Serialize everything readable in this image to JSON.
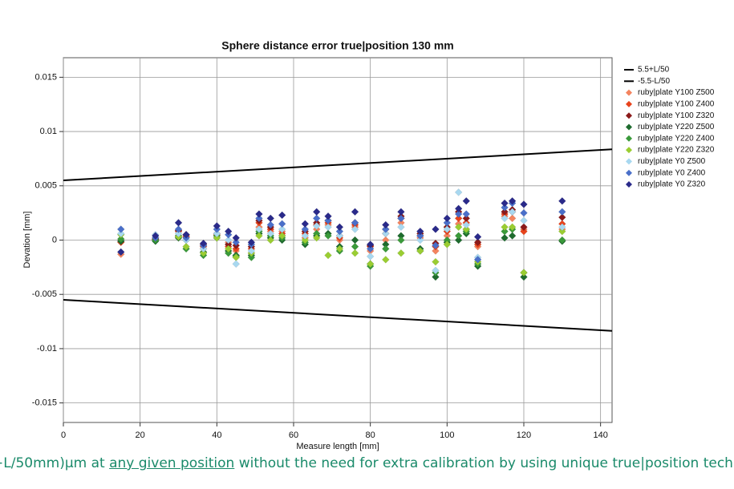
{
  "chart_data": {
    "type": "scatter",
    "title": "Sphere distance error true|position 130 mm",
    "xlabel": "Measure length [mm]",
    "ylabel": "Devation [mm]",
    "xlim": [
      0,
      143
    ],
    "ylim": [
      -0.0168,
      0.0168
    ],
    "xticks": [
      0,
      20,
      40,
      60,
      80,
      100,
      120,
      140
    ],
    "yticks": [
      0.015,
      0.01,
      0.005,
      0,
      -0.005,
      -0.01,
      -0.015
    ],
    "grid": true,
    "legend": "right",
    "x": [
      15,
      24,
      30,
      32,
      36.5,
      40,
      43,
      45,
      49,
      51,
      54,
      57,
      63,
      66,
      69,
      72,
      76,
      80,
      84,
      88,
      93,
      97,
      100,
      103,
      105,
      108,
      115,
      117,
      120,
      130
    ],
    "lines": [
      {
        "name": "5.5+L/50",
        "color": "#000000",
        "x": [
          0,
          143
        ],
        "values": [
          0.0055,
          0.00836
        ]
      },
      {
        "name": "-5.5-L/50",
        "color": "#000000",
        "x": [
          0,
          143
        ],
        "values": [
          -0.0055,
          -0.00836
        ]
      }
    ],
    "series": [
      {
        "name": "ruby|plate Y100 Z500",
        "color": "#f4845f",
        "values": [
          -0.0013,
          0.0001,
          0.0004,
          0.0004,
          -0.0008,
          0.0005,
          -0.0002,
          -0.001,
          -0.0012,
          0.0012,
          0.0008,
          0.0008,
          0.0002,
          0.001,
          0.0014,
          0,
          0.0012,
          -0.001,
          0,
          0.0016,
          0.0002,
          -0.001,
          0.0004,
          0.0015,
          0.001,
          -0.0006,
          0.0022,
          0.002,
          0.001,
          0.001
        ]
      },
      {
        "name": "ruby|plate Y100 Z400",
        "color": "#e8431c",
        "values": [
          -0.0002,
          0,
          0.0008,
          0.0003,
          -0.0006,
          0.0004,
          -0.0006,
          -0.0008,
          -0.0008,
          0.0016,
          0.001,
          0.0006,
          0.0006,
          0.0014,
          0.0016,
          0.0002,
          0.0014,
          -0.0006,
          0.0006,
          0.002,
          0.0004,
          -0.0006,
          0.0008,
          0.002,
          0.0016,
          -0.0004,
          0.0024,
          0.0026,
          0.0008,
          0.0015
        ]
      },
      {
        "name": "ruby|plate Y100 Z320",
        "color": "#8b1a1a",
        "values": [
          -0.0001,
          0.0001,
          0.0009,
          0.0005,
          -0.0004,
          0.0006,
          -0.0004,
          -0.0005,
          -0.0006,
          0.0018,
          0.0012,
          0.0004,
          0.0008,
          0.0016,
          0.0018,
          0.0004,
          0.0016,
          -0.0005,
          0.001,
          0.0022,
          0.0006,
          -0.0003,
          0.0012,
          0.0026,
          0.002,
          -0.0002,
          0.0026,
          0.0028,
          0.0012,
          0.0021
        ]
      },
      {
        "name": "ruby|plate Y220 Z500",
        "color": "#1e6b2e",
        "values": [
          -0.0001,
          -0.0001,
          0.0002,
          0,
          -0.0011,
          0.0002,
          -0.001,
          -0.0014,
          -0.0014,
          0.0006,
          0.0002,
          0,
          -0.0004,
          0.0004,
          0.0006,
          -0.0006,
          0,
          -0.0022,
          -0.0004,
          0.0004,
          -0.0008,
          -0.0034,
          -0.0002,
          0,
          0.0006,
          -0.0024,
          0.0002,
          0.0004,
          -0.0034,
          -0.0001
        ]
      },
      {
        "name": "ruby|plate Y220 Z400",
        "color": "#3a9a3a",
        "values": [
          0.0001,
          0,
          0.0004,
          -0.0008,
          -0.0014,
          0.0004,
          -0.0012,
          -0.0015,
          -0.0016,
          0.0008,
          0.0004,
          0.0002,
          -0.0002,
          0.0006,
          0.0004,
          -0.001,
          -0.0006,
          -0.0024,
          -0.0008,
          0,
          -0.001,
          -0.003,
          0,
          0.0004,
          0.0008,
          -0.0022,
          0.0008,
          0.001,
          -0.003,
          0
        ]
      },
      {
        "name": "ruby|plate Y220 Z320",
        "color": "#9acd32",
        "values": [
          0.0005,
          0.0002,
          0.0003,
          -0.0006,
          -0.0012,
          0.0002,
          -0.0008,
          -0.0016,
          -0.0012,
          0.0004,
          0,
          0.0004,
          0,
          0.0002,
          -0.0014,
          -0.0008,
          -0.0012,
          -0.0022,
          -0.0018,
          -0.0012,
          -0.001,
          -0.002,
          -0.0004,
          0.0012,
          0.001,
          -0.002,
          0.0012,
          0.0012,
          -0.003,
          0.0008
        ]
      },
      {
        "name": "ruby|plate Y0 Z500",
        "color": "#a8d8f0",
        "values": [
          0.0006,
          0.0005,
          0.0006,
          0,
          -0.0008,
          0.0006,
          0,
          -0.0022,
          -0.001,
          0.001,
          0.0006,
          0.001,
          0.0004,
          0.0013,
          0.0012,
          0.0004,
          0.001,
          -0.0015,
          0.0006,
          0.0012,
          0,
          -0.0028,
          0.001,
          0.0044,
          0.0014,
          -0.0016,
          0.002,
          0.0026,
          0.0018,
          0.0012
        ]
      },
      {
        "name": "ruby|plate Y0 Z400",
        "color": "#4a6fc9",
        "values": [
          0.001,
          0.0002,
          0.001,
          0.0002,
          -0.0005,
          0.001,
          0.0005,
          -0.0002,
          -0.0004,
          0.002,
          0.0014,
          0.0015,
          0.001,
          0.002,
          0.0018,
          0.0008,
          0.0016,
          -0.0008,
          0.001,
          0.002,
          0.0004,
          -0.0005,
          0.0016,
          0.0024,
          0.0024,
          -0.0018,
          0.003,
          0.0034,
          0.0025,
          0.0026
        ]
      },
      {
        "name": "ruby|plate Y0 Z320",
        "color": "#2a2a8a",
        "values": [
          -0.0011,
          0.0004,
          0.0016,
          0.0005,
          -0.0003,
          0.0013,
          0.0008,
          0.0002,
          -0.0002,
          0.0024,
          0.002,
          0.0023,
          0.0015,
          0.0026,
          0.0022,
          0.0012,
          0.0026,
          -0.0004,
          0.0014,
          0.0026,
          0.0008,
          0.001,
          0.002,
          0.0029,
          0.0036,
          0.0003,
          0.0034,
          0.0036,
          0.0033,
          0.0036
        ]
      }
    ]
  },
  "caption": {
    "before": "+L/50mm)µm at ",
    "link": "any given position",
    "after": " without the need for extra calibration by using unique true|position tech"
  }
}
